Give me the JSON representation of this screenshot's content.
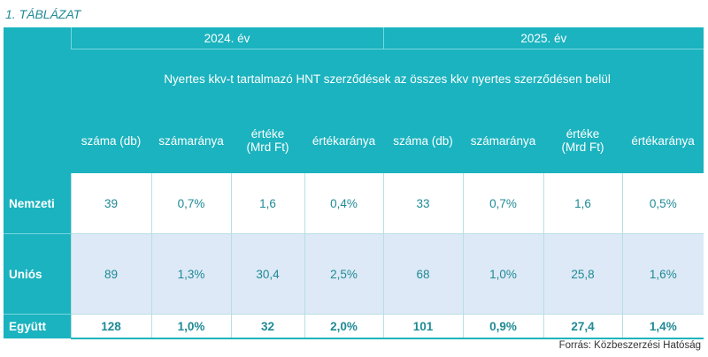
{
  "caption": "1. TÁBLÁZAT",
  "years": [
    "2024. év",
    "2025. év"
  ],
  "subtitle": "Nyertes kkv-t tartalmazó HNT szerződések az összes kkv nyertes szerződésen belül",
  "columns": [
    "száma (db)",
    "számaránya",
    "értéke (Mrd Ft)",
    "értékaránya",
    "száma (db)",
    "számaránya",
    "értéke (Mrd Ft)",
    "értékaránya"
  ],
  "rows": [
    {
      "label": "Nemzeti",
      "values": [
        "39",
        "0,7%",
        "1,6",
        "0,4%",
        "33",
        "0,7%",
        "1,6",
        "0,5%"
      ]
    },
    {
      "label": "Uniós",
      "values": [
        "89",
        "1,3%",
        "30,4",
        "2,5%",
        "68",
        "1,0%",
        "25,8",
        "1,6%"
      ]
    },
    {
      "label": "Együtt",
      "values": [
        "128",
        "1,0%",
        "32",
        "2,0%",
        "101",
        "0,9%",
        "27,4",
        "1,4%"
      ]
    }
  ],
  "source": "Forrás: Közbeszerzési Hatóság",
  "colors": {
    "accent": "#1ab3bf",
    "text": "#1f8a95",
    "alt_row": "#dde9f6"
  }
}
